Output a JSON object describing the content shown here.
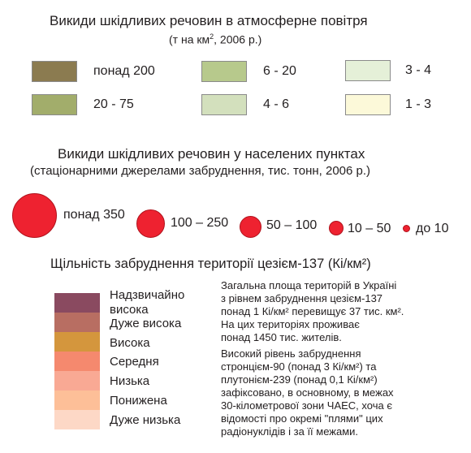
{
  "section1": {
    "title": "Викиди шкідливих речовин в атмосферне повітря",
    "subtitle_pre": "(т на км",
    "subtitle_sup": "2",
    "subtitle_post": ", 2006 р.)",
    "items": [
      {
        "label": "понад 200",
        "color": "#8b7b50"
      },
      {
        "label": "20 - 75",
        "color": "#a2ad6b"
      },
      {
        "label": "6 - 20",
        "color": "#b7c98c"
      },
      {
        "label": "4 - 6",
        "color": "#d3e0bd"
      },
      {
        "label": "3 - 4",
        "color": "#e5f0d8"
      },
      {
        "label": "1 - 3",
        "color": "#fcf9d9"
      }
    ]
  },
  "section2": {
    "title": "Викиди шкідливих речовин у населених пунктах",
    "subtitle": "(стаціонарними джерелами забруднення, тис. тонн, 2006 р.)",
    "circle_color": "#ee2230",
    "items": [
      {
        "label": "понад 350"
      },
      {
        "label": "100 – 250"
      },
      {
        "label": "50 – 100"
      },
      {
        "label": "10 – 50"
      },
      {
        "label": "до 10"
      }
    ]
  },
  "section3": {
    "title": "Щільність забруднення території цезієм-137 (Кі/км²)",
    "items": [
      {
        "label": "Надзвичайно висока",
        "color": "#8a4a60"
      },
      {
        "label": "Дуже висока",
        "color": "#b86e62"
      },
      {
        "label": "Висока",
        "color": "#d4963d"
      },
      {
        "label": "Середня",
        "color": "#f5896e"
      },
      {
        "label": "Низька",
        "color": "#f9a994"
      },
      {
        "label": "Понижена",
        "color": "#fdbf98"
      },
      {
        "label": "Дуже низька",
        "color": "#fdd8c6"
      }
    ],
    "note_lines": [
      "Загальна площа територій в Україні",
      "з рівнем забруднення цезієм-137",
      "понад 1 Кі/км² перевищує 37 тис. км².",
      "На цих територіях проживає",
      "понад 1450 тис. жителів.",
      "Високий рівень забруднення",
      "стронцієм-90 (понад 3 Кі/км²) та",
      "плутонієм-239 (понад 0,1 Кі/км²)",
      "зафіксовано, в основному, в межах",
      "30-кілометрової зони ЧАЕС, хоча є",
      "відомості про окремі \"плями\" цих",
      "радіонуклідів і за її межами."
    ]
  }
}
